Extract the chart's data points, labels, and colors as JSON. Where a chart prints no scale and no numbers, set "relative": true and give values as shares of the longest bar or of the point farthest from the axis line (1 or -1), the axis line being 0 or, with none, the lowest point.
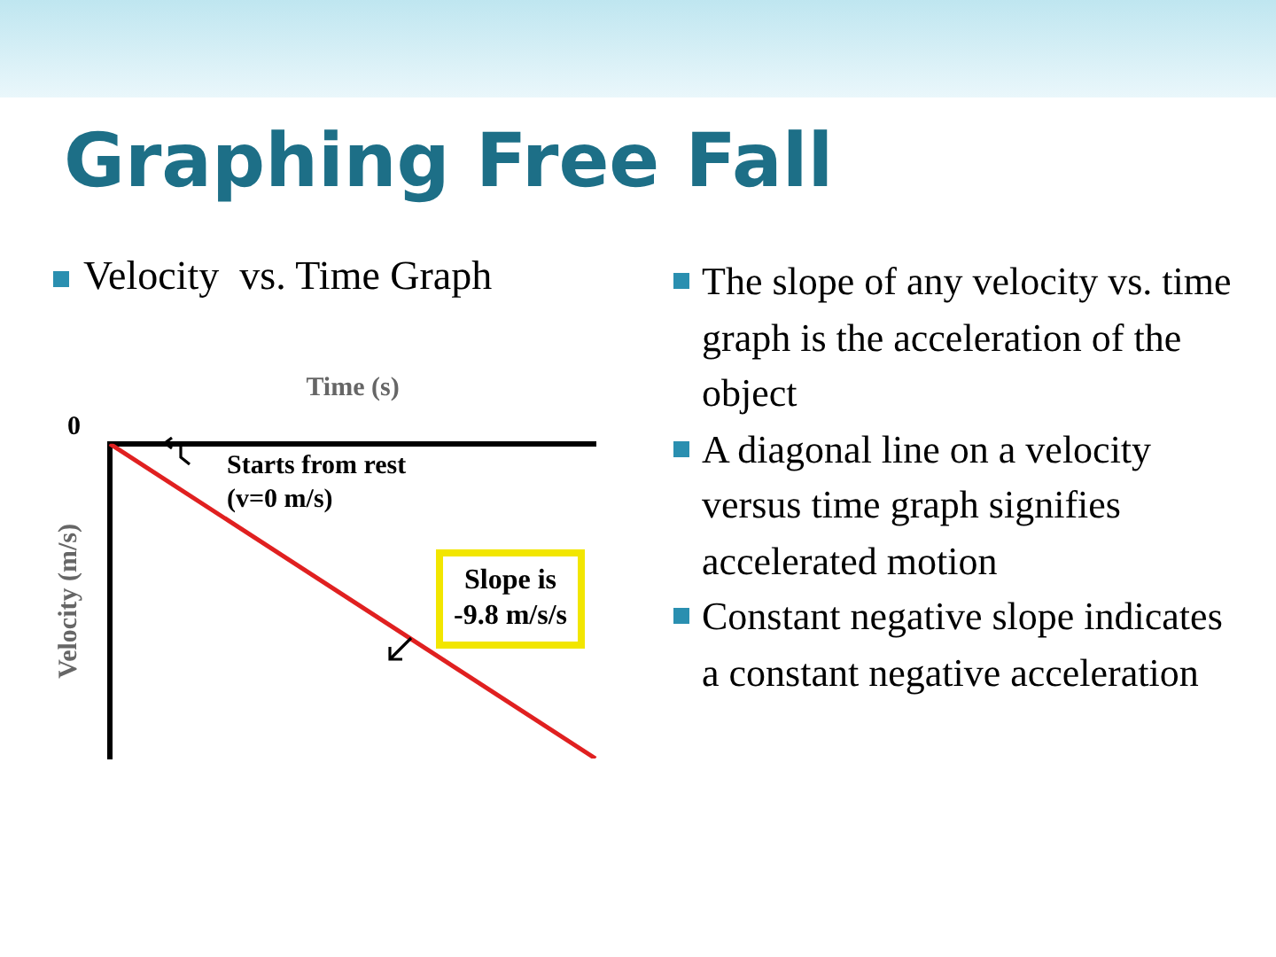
{
  "chart_data": {
    "type": "line",
    "title": "Graphing Free Fall",
    "subtitle": "Velocity  vs. Time Graph",
    "xlabel": "Time (s)",
    "ylabel": "Velocity (m/s)",
    "relative": true,
    "categories": [
      null,
      null
    ],
    "series": [
      {
        "color": "#e02020",
        "values": [
          0,
          -1
        ]
      }
    ],
    "grid": false,
    "legend": false,
    "marker": "none",
    "line_style": "solid",
    "annotations": [
      "0",
      "Starts from rest\n(v=0 m/s)",
      "Slope is\n-9.8 m/s/s",
      "The slope of any velocity vs. time graph is the acceleration of the object",
      "A diagonal line on a velocity versus time graph signifies accelerated motion",
      "Constant negative slope indicates a constant negative acceleration"
    ]
  }
}
